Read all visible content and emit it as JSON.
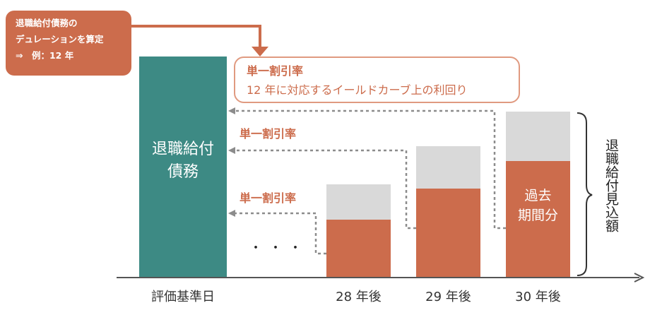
{
  "callout": {
    "line1": "退職給付債務の",
    "line2": "デュレーションを算定",
    "line3": "⇒　例：12 年"
  },
  "rate_box": {
    "title": "単一割引率",
    "subtitle": "12 年に対応するイールドカーブ上の利回り"
  },
  "rate_labels": [
    "単一割引率",
    "単一割引率"
  ],
  "liability_bar": {
    "line1": "退職給付",
    "line2": "債務"
  },
  "past_service": {
    "line1": "過去",
    "line2": "期間分"
  },
  "projected_benefit_label": "退職給付見込額",
  "ellipsis": "・・・",
  "x_axis": {
    "labels": [
      "評価基準日",
      "28 年後",
      "29 年後",
      "30 年後"
    ]
  },
  "colors": {
    "teal": "#3d8a84",
    "orange": "#cc6c4c",
    "gray": "#d9d9d9",
    "callout_border": "#e09a80",
    "dotted_line": "#8c8c8c",
    "axis": "#555555"
  }
}
